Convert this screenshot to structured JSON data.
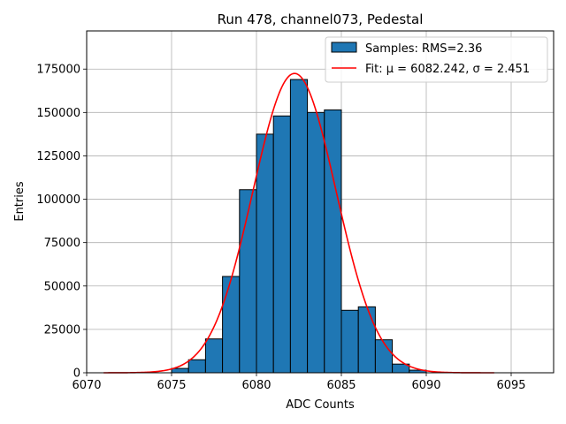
{
  "chart_data": {
    "type": "bar",
    "title": "Run 478, channel073, Pedestal",
    "xlabel": "ADC Counts",
    "ylabel": "Entries",
    "xlim": [
      6070,
      6097.5
    ],
    "ylim": [
      0,
      197000
    ],
    "xticks": [
      6070,
      6075,
      6080,
      6085,
      6090,
      6095
    ],
    "yticks": [
      0,
      25000,
      50000,
      75000,
      100000,
      125000,
      150000,
      175000
    ],
    "grid": true,
    "legend_position": "top-right",
    "histogram": {
      "name": "Samples: RMS=2.36",
      "color": "#1f77b4",
      "edgecolor": "#000000",
      "bin_edges": [
        6075,
        6076,
        6077,
        6078,
        6079,
        6080,
        6081,
        6082,
        6083,
        6084,
        6085,
        6086,
        6087,
        6088,
        6089,
        6090
      ],
      "counts": [
        2500,
        7500,
        19500,
        55500,
        105500,
        137500,
        148000,
        169000,
        150000,
        151500,
        36000,
        38000,
        19000,
        5000,
        1500
      ]
    },
    "fit": {
      "name": "Fit: μ = 6082.242, σ = 2.451",
      "color": "#ff0000",
      "mu": 6082.242,
      "sigma": 2.451,
      "amplitude": 172500,
      "x_range": [
        6071,
        6094
      ]
    }
  }
}
